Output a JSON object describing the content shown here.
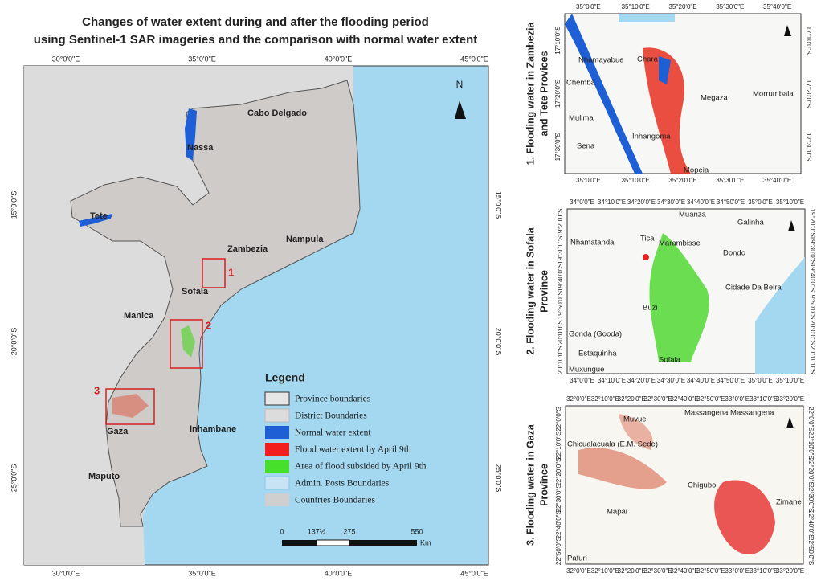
{
  "title_lines": [
    "Changes of water extent during and after the flooding period",
    "using Sentinel-1 SAR imageries and the comparison with normal water extent"
  ],
  "main_map": {
    "lon_labels": [
      "30°0'0\"E",
      "35°0'0\"E",
      "40°0'0\"E",
      "45°0'0\"E"
    ],
    "lat_labels": [
      "15°0'0\"S",
      "20°0'0\"S",
      "25°0'0\"S"
    ],
    "places": [
      "Cabo Delgado",
      "Nassa",
      "Tete",
      "Nampula",
      "Zambezia",
      "Sofala",
      "Manica",
      "Inhambane",
      "Gaza",
      "Maputo"
    ],
    "boxes": [
      "1",
      "2",
      "3"
    ],
    "north": "N"
  },
  "legend": {
    "title": "Legend",
    "items": [
      "Province boundaries",
      "District Boundaries",
      "Normal water extent",
      "Flood water extent by April 9th",
      "Area of flood subsided by April 9th",
      "Admin. Posts Boundaries",
      "Countries Boundaries"
    ]
  },
  "scale": {
    "labels": [
      "0",
      "137½",
      "275",
      "550"
    ],
    "unit": "Km"
  },
  "panels": [
    {
      "title_lines": [
        "1. Flooding water in Zambezia",
        "and Tete Provices"
      ],
      "lon_labels": [
        "35°0'0\"E",
        "35°10'0\"E",
        "35°20'0\"E",
        "35°30'0\"E",
        "35°40'0\"E"
      ],
      "lat_labels": [
        "17°10'0\"S",
        "17°20'0\"S",
        "17°30'0\"S"
      ],
      "places": [
        "Nhamayabue",
        "Chara",
        "Chemba",
        "Megaza",
        "Morrumbala",
        "Mulima",
        "Inhangoma",
        "Sena",
        "Mopeia"
      ]
    },
    {
      "title_lines": [
        "2. Flooding water in Sofala",
        "Province"
      ],
      "lon_labels": [
        "34°0'0\"E",
        "34°10'0\"E",
        "34°20'0\"E",
        "34°30'0\"E",
        "34°40'0\"E",
        "34°50'0\"E",
        "35°0'0\"E",
        "35°10'0\"E"
      ],
      "lat_labels": [
        "19°20'0\"S",
        "19°30'0\"S",
        "19°40'0\"S",
        "19°50'0\"S",
        "20°0'0\"S",
        "20°10'0\"S"
      ],
      "places": [
        "Muanza",
        "Galinha",
        "Tica",
        "Nhamatanda",
        "Marambisse",
        "Dondo",
        "Cidade Da Beira",
        "Buzi",
        "Gonda (Gooda)",
        "Estaquinha",
        "Sofala",
        "Muxungue"
      ]
    },
    {
      "title_lines": [
        "3. Flooding water in Gaza",
        "Province"
      ],
      "lon_labels": [
        "32°0'0\"E",
        "32°10'0\"E",
        "32°20'0\"E",
        "32°30'0\"E",
        "32°40'0\"E",
        "32°50'0\"E",
        "33°0'0\"E",
        "33°10'0\"E",
        "33°20'0\"E"
      ],
      "lat_labels": [
        "22°0'0\"S",
        "22°10'0\"S",
        "22°20'0\"S",
        "22°30'0\"S",
        "22°40'0\"S",
        "22°50'0\"S"
      ],
      "places": [
        "Massangena Massangena",
        "Muvue",
        "Chicualacuala (E.M. Sede)",
        "Chigubo",
        "Zimane",
        "Mapai",
        "Pafuri"
      ]
    }
  ]
}
